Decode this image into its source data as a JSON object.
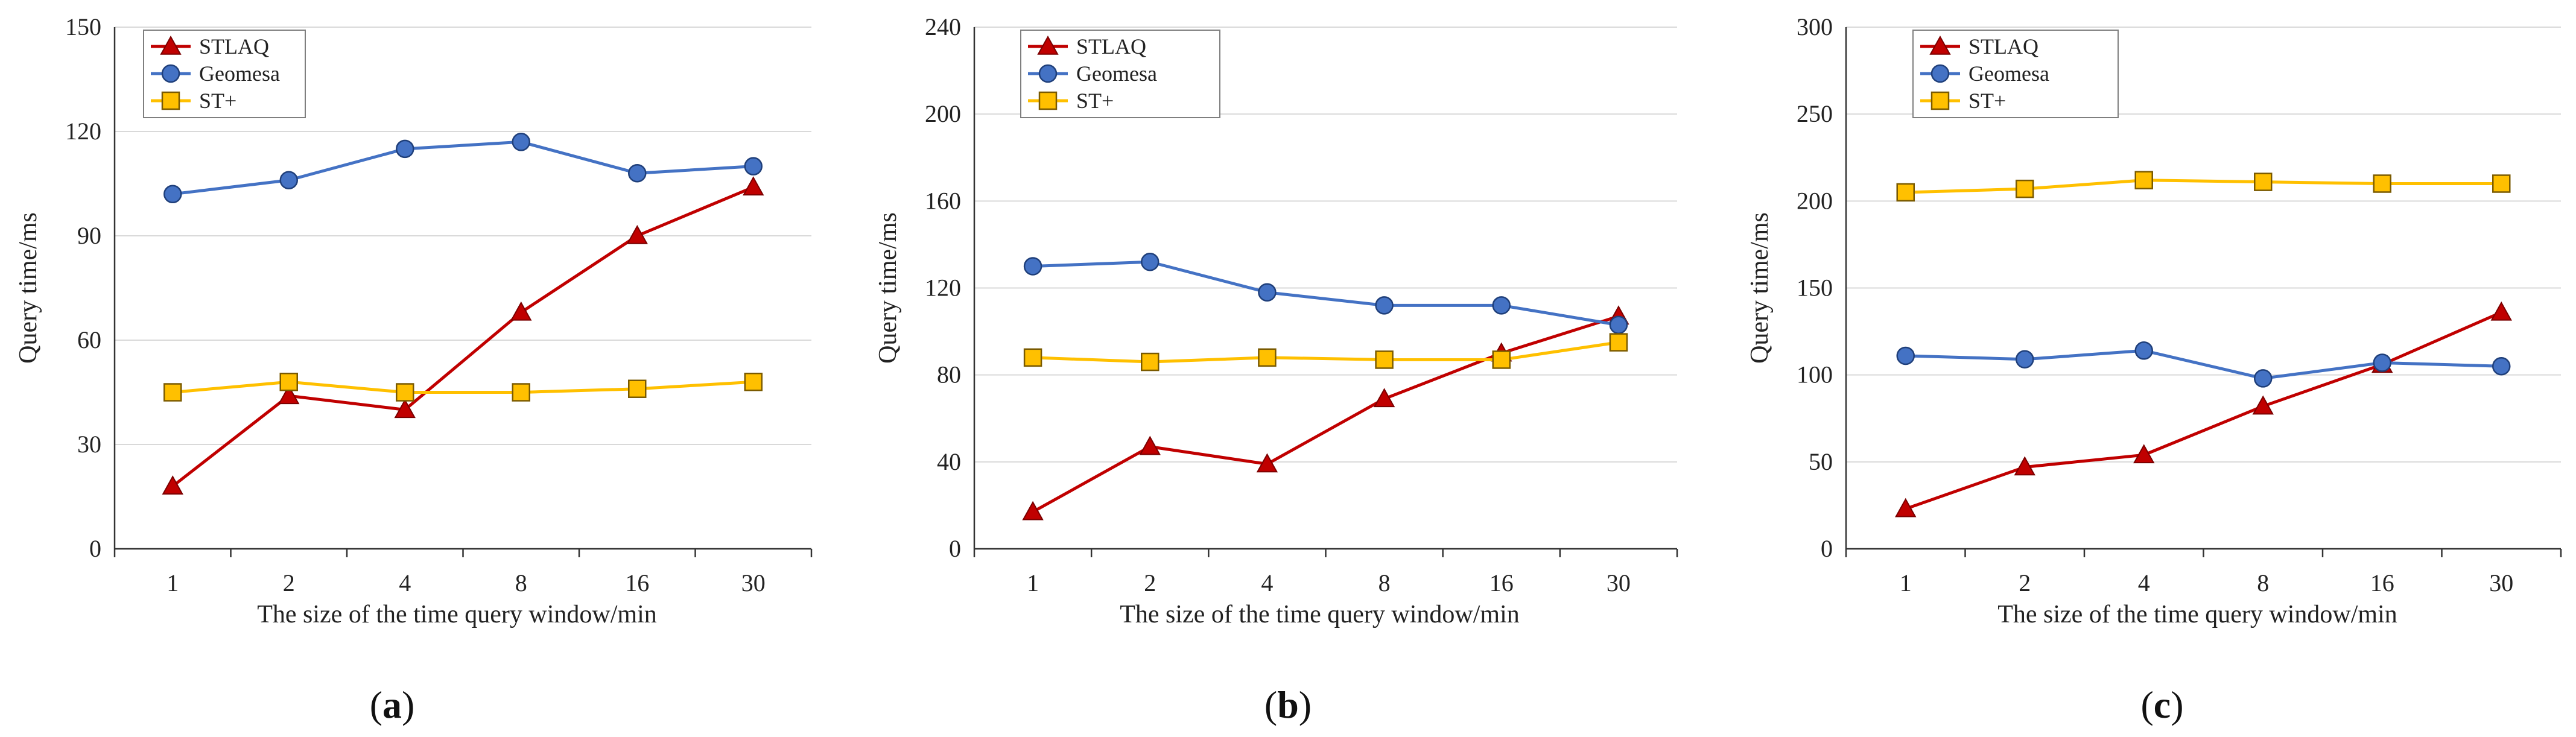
{
  "colors": {
    "stlaq": "#C00000",
    "geomesa": "#4472C4",
    "stplus": "#FFC000",
    "gridline": "#D9D9D9",
    "axis": "#333333"
  },
  "chart_data": [
    {
      "type": "line",
      "panel_label": "a",
      "xlabel": "The size of the time query window/min",
      "ylabel": "Query time/ms",
      "categories": [
        "1",
        "2",
        "4",
        "8",
        "16",
        "30"
      ],
      "ylim": [
        0,
        150
      ],
      "yticks": [
        "0",
        "30",
        "60",
        "90",
        "120",
        "150"
      ],
      "grid": true,
      "legend_position": "top-left",
      "series": [
        {
          "name": "STLAQ",
          "marker": "triangle",
          "values": [
            18,
            44,
            40,
            68,
            90,
            104
          ]
        },
        {
          "name": "Geomesa",
          "marker": "circle",
          "values": [
            102,
            106,
            115,
            117,
            108,
            110
          ]
        },
        {
          "name": "ST+",
          "marker": "square",
          "values": [
            45,
            48,
            45,
            45,
            46,
            48
          ]
        }
      ]
    },
    {
      "type": "line",
      "panel_label": "b",
      "xlabel": "The size of the time query window/min",
      "ylabel": "Query time/ms",
      "categories": [
        "1",
        "2",
        "4",
        "8",
        "16",
        "30"
      ],
      "ylim": [
        0,
        240
      ],
      "yticks": [
        "0",
        "40",
        "80",
        "120",
        "160",
        "200",
        "240"
      ],
      "grid": true,
      "legend_position": "top-left",
      "series": [
        {
          "name": "STLAQ",
          "marker": "triangle",
          "values": [
            17,
            47,
            39,
            69,
            90,
            107
          ]
        },
        {
          "name": "Geomesa",
          "marker": "circle",
          "values": [
            130,
            132,
            118,
            112,
            112,
            103
          ]
        },
        {
          "name": "ST+",
          "marker": "square",
          "values": [
            88,
            86,
            88,
            87,
            87,
            95
          ]
        }
      ]
    },
    {
      "type": "line",
      "panel_label": "c",
      "xlabel": "The size of the time query window/min",
      "ylabel": "Query time/ms",
      "categories": [
        "1",
        "2",
        "4",
        "8",
        "16",
        "30"
      ],
      "ylim": [
        0,
        300
      ],
      "yticks": [
        "0",
        "50",
        "100",
        "150",
        "200",
        "250",
        "300"
      ],
      "grid": true,
      "legend_position": "top-left",
      "series": [
        {
          "name": "STLAQ",
          "marker": "triangle",
          "values": [
            23,
            47,
            54,
            82,
            106,
            136
          ]
        },
        {
          "name": "Geomesa",
          "marker": "circle",
          "values": [
            111,
            109,
            114,
            98,
            107,
            105
          ]
        },
        {
          "name": "ST+",
          "marker": "square",
          "values": [
            205,
            207,
            212,
            211,
            210,
            210
          ]
        }
      ]
    }
  ]
}
